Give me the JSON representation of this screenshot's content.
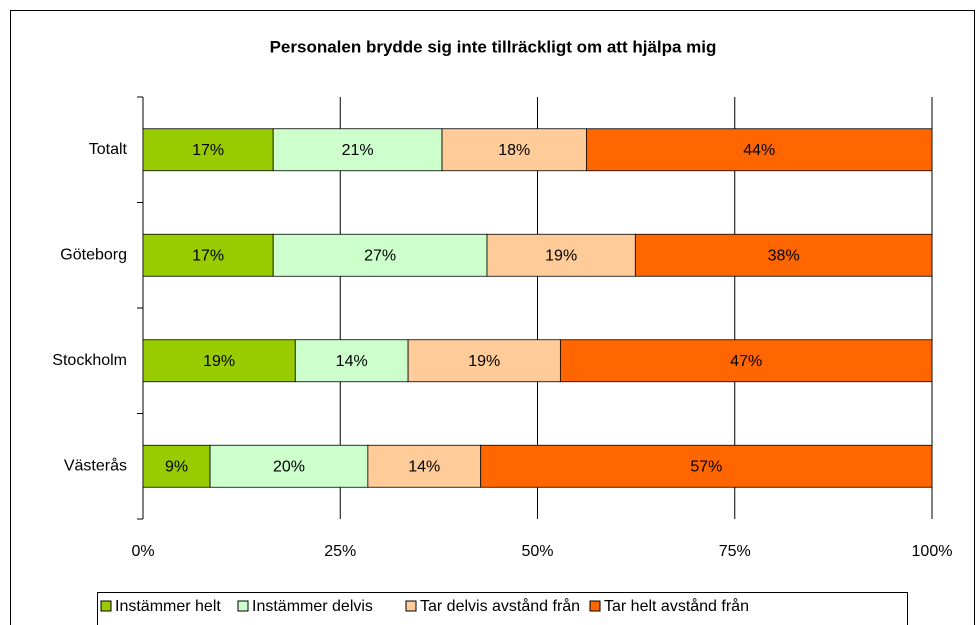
{
  "chart_data": {
    "type": "stacked_bar_horizontal",
    "title": "Personalen brydde sig inte tillräckligt om att hjälpa mig",
    "categories": [
      "Totalt",
      "Göteborg",
      "Stockholm",
      "Västerås"
    ],
    "series": [
      {
        "name": "Instämmer helt",
        "color": "#99cc00",
        "values": [
          16.5,
          16.5,
          19.3,
          8.5
        ],
        "value_labels": [
          "17%",
          "17%",
          "19%",
          "9%"
        ]
      },
      {
        "name": "Instämmer delvis",
        "color": "#ccffcc",
        "values": [
          21.4,
          27.1,
          14.3,
          20.0
        ],
        "value_labels": [
          "21%",
          "27%",
          "14%",
          "20%"
        ]
      },
      {
        "name": "Tar delvis avstånd från",
        "color": "#ffcc99",
        "values": [
          18.3,
          18.8,
          19.3,
          14.3
        ],
        "value_labels": [
          "18%",
          "19%",
          "19%",
          "14%"
        ]
      },
      {
        "name": "Tar helt avstånd från",
        "color": "#ff6600",
        "values": [
          43.8,
          37.6,
          47.1,
          57.2
        ],
        "value_labels": [
          "44%",
          "38%",
          "47%",
          "57%"
        ]
      }
    ],
    "xlim": [
      0,
      100
    ],
    "xticks": [
      {
        "value": 0,
        "label": "0%"
      },
      {
        "value": 25,
        "label": "25%"
      },
      {
        "value": 50,
        "label": "50%"
      },
      {
        "value": 75,
        "label": "75%"
      },
      {
        "value": 100,
        "label": "100%"
      }
    ],
    "grid": true,
    "legend": "bottom"
  }
}
